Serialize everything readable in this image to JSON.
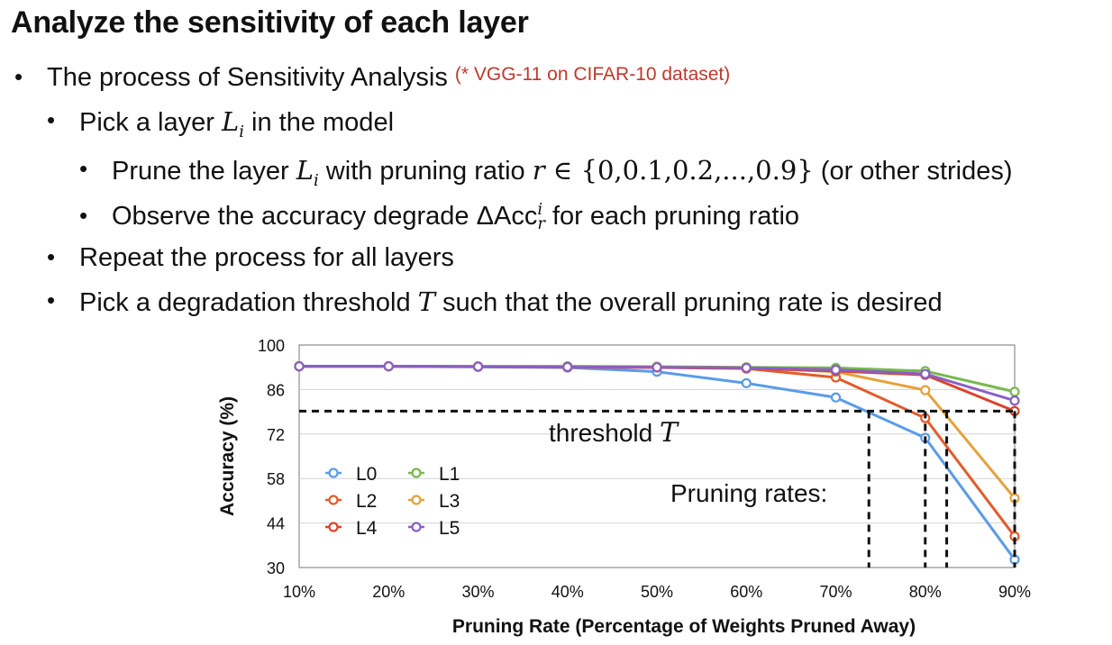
{
  "slide": {
    "title": "Analyze the sensitivity of each layer",
    "bullets": [
      {
        "text": "The process of Sensitivity Analysis",
        "note": "(* VGG-11 on CIFAR-10 dataset)"
      },
      {
        "pre": "Pick a layer ",
        "var": "L",
        "sub": "i",
        "post": " in the model"
      },
      {
        "pre": "Prune the layer ",
        "var": "L",
        "sub": "i",
        "mid": " with pruning ratio ",
        "var2": "r",
        "set": " ∈ {0,0.1,0.2,...,0.9}",
        "post": " (or other strides)"
      },
      {
        "pre": "Observe the accuracy degrade ",
        "delta": "ΔAcc",
        "sup": "i",
        "sub": "r",
        "post": " for each pruning ratio"
      },
      {
        "text": "Repeat the process for all layers"
      },
      {
        "pre": "Pick a degradation threshold ",
        "var": "T",
        "post": " such that the overall pruning rate is desired"
      }
    ]
  },
  "chart_data": {
    "type": "line",
    "x": [
      "10%",
      "20%",
      "30%",
      "40%",
      "50%",
      "60%",
      "70%",
      "80%",
      "90%"
    ],
    "xlabel": "Pruning Rate (Percentage of Weights Pruned Away)",
    "ylabel": "Accuracy (%)",
    "ylim": [
      30,
      100
    ],
    "yticks": [
      30,
      44,
      58,
      72,
      86,
      100
    ],
    "grid": true,
    "legend_position": "lower-left",
    "series": [
      {
        "name": "L0",
        "color": "#5b9be8",
        "values": [
          93.3,
          93.3,
          93.1,
          92.9,
          91.6,
          88.0,
          83.5,
          70.8,
          32.5
        ]
      },
      {
        "name": "L1",
        "color": "#77b94d",
        "values": [
          93.3,
          93.3,
          93.3,
          93.3,
          93.2,
          93.0,
          92.8,
          91.8,
          85.3
        ]
      },
      {
        "name": "L2",
        "color": "#e35b2a",
        "values": [
          93.3,
          93.3,
          93.2,
          93.0,
          92.9,
          92.6,
          89.8,
          77.0,
          39.8
        ]
      },
      {
        "name": "L3",
        "color": "#e5a23b",
        "values": [
          93.3,
          93.3,
          93.2,
          93.1,
          93.0,
          92.8,
          91.6,
          85.8,
          51.8
        ]
      },
      {
        "name": "L4",
        "color": "#d9442b",
        "values": [
          93.3,
          93.3,
          93.2,
          93.1,
          93.0,
          92.7,
          91.8,
          90.6,
          79.2
        ]
      },
      {
        "name": "L5",
        "color": "#8a5fc4",
        "values": [
          93.3,
          93.3,
          93.2,
          93.1,
          93.0,
          92.8,
          92.2,
          90.9,
          82.5
        ]
      }
    ],
    "threshold": {
      "value": 79.2,
      "label": "threshold",
      "symbol": "T"
    },
    "pruning_rates_label": "Pruning rates:",
    "pruning_rates_x": [
      73.7,
      80.0,
      82.4,
      90.0
    ]
  }
}
